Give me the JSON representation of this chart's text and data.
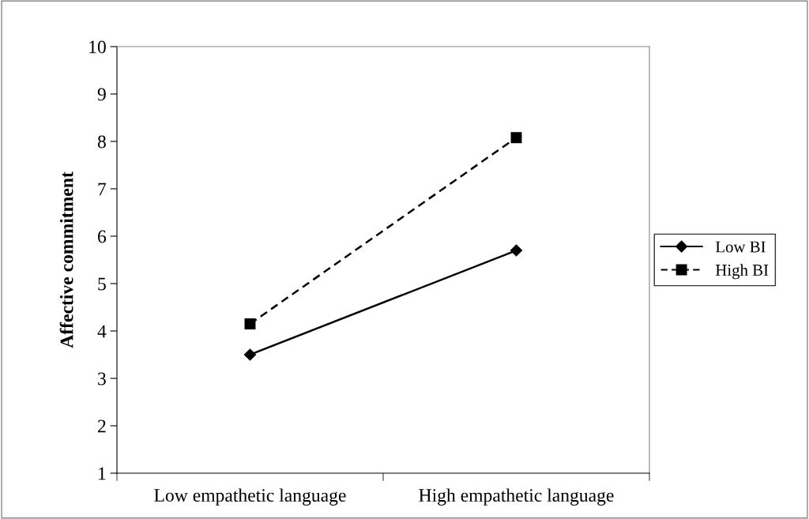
{
  "chart_data": {
    "type": "line",
    "ylabel": "Affective commitment",
    "categories": [
      "Low empathetic language",
      "High empathetic language"
    ],
    "series": [
      {
        "name": "Low BI",
        "color": "#000000",
        "values": [
          3.5,
          5.7
        ],
        "marker": "diamond",
        "line_style": "solid"
      },
      {
        "name": "High BI",
        "color": "#000000",
        "values": [
          4.15,
          8.08
        ],
        "marker": "square",
        "line_style": "dashed"
      }
    ],
    "ylim": [
      1,
      10
    ],
    "yticks": [
      1,
      2,
      3,
      4,
      5,
      6,
      7,
      8,
      9,
      10
    ],
    "grid": false,
    "legend": "right"
  }
}
